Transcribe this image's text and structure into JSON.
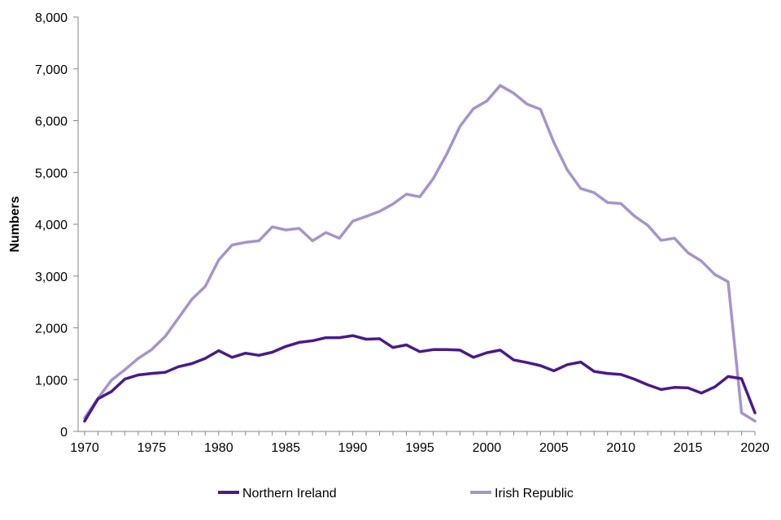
{
  "chart_data": {
    "type": "line",
    "title": "",
    "xlabel": "",
    "ylabel": "Numbers",
    "ylim": [
      0,
      8000
    ],
    "xlim": [
      1970,
      2020
    ],
    "y_ticks": [
      0,
      1000,
      2000,
      3000,
      4000,
      5000,
      6000,
      7000,
      8000
    ],
    "y_tick_labels": [
      "0",
      "1,000",
      "2,000",
      "3,000",
      "4,000",
      "5,000",
      "6,000",
      "7,000",
      "8,000"
    ],
    "x_ticks": [
      1970,
      1975,
      1980,
      1985,
      1990,
      1995,
      2000,
      2005,
      2010,
      2015,
      2020
    ],
    "x_tick_labels": [
      "1970",
      "1975",
      "1980",
      "1985",
      "1990",
      "1995",
      "2000",
      "2005",
      "2010",
      "2015",
      "2020"
    ],
    "grid": false,
    "legend_position": "bottom",
    "x": [
      1970,
      1971,
      1972,
      1973,
      1974,
      1975,
      1976,
      1977,
      1978,
      1979,
      1980,
      1981,
      1982,
      1983,
      1984,
      1985,
      1986,
      1987,
      1988,
      1989,
      1990,
      1991,
      1992,
      1993,
      1994,
      1995,
      1996,
      1997,
      1998,
      1999,
      2000,
      2001,
      2002,
      2003,
      2004,
      2005,
      2006,
      2007,
      2008,
      2009,
      2010,
      2011,
      2012,
      2013,
      2014,
      2015,
      2016,
      2017,
      2018,
      2019,
      2020
    ],
    "series": [
      {
        "name": "Northern Ireland",
        "color": "#4b1a8a",
        "values": [
          200,
          630,
          770,
          1010,
          1090,
          1120,
          1140,
          1250,
          1310,
          1410,
          1560,
          1430,
          1510,
          1470,
          1530,
          1640,
          1720,
          1750,
          1810,
          1810,
          1850,
          1780,
          1790,
          1620,
          1670,
          1540,
          1580,
          1580,
          1570,
          1430,
          1520,
          1570,
          1380,
          1330,
          1270,
          1170,
          1290,
          1340,
          1160,
          1120,
          1100,
          1010,
          900,
          810,
          850,
          840,
          740,
          860,
          1060,
          1020,
          360
        ]
      },
      {
        "name": "Irish Republic",
        "color": "#a694cc",
        "values": [
          260,
          640,
          990,
          1190,
          1410,
          1580,
          1830,
          2190,
          2550,
          2800,
          3310,
          3600,
          3650,
          3680,
          3950,
          3890,
          3920,
          3680,
          3840,
          3730,
          4060,
          4150,
          4250,
          4390,
          4580,
          4530,
          4880,
          5350,
          5890,
          6230,
          6380,
          6680,
          6530,
          6320,
          6220,
          5580,
          5050,
          4690,
          4610,
          4420,
          4400,
          4160,
          3980,
          3690,
          3730,
          3450,
          3290,
          3030,
          2890,
          360,
          200
        ]
      }
    ]
  }
}
